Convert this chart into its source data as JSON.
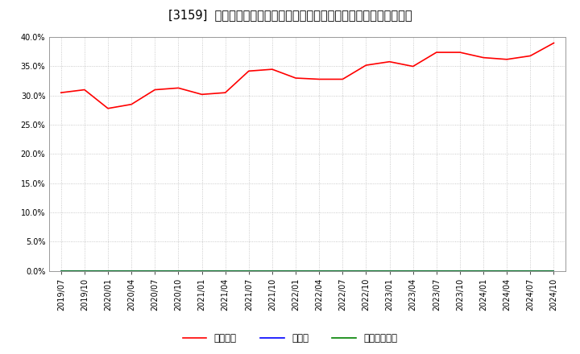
{
  "title": "[3159]  自己資本、のれん、繰延税金資産の総資産に対する比率の推移",
  "equity_dates": [
    "2019/07",
    "2019/10",
    "2020/01",
    "2020/04",
    "2020/07",
    "2020/10",
    "2021/01",
    "2021/04",
    "2021/07",
    "2021/10",
    "2022/01",
    "2022/04",
    "2022/07",
    "2022/10",
    "2023/01",
    "2023/04",
    "2023/07",
    "2023/10",
    "2024/01",
    "2024/04",
    "2024/07",
    "2024/10"
  ],
  "equity_values": [
    0.305,
    0.31,
    0.278,
    0.285,
    0.31,
    0.313,
    0.302,
    0.305,
    0.342,
    0.345,
    0.33,
    0.328,
    0.328,
    0.352,
    0.358,
    0.35,
    0.374,
    0.374,
    0.365,
    0.362,
    0.368,
    0.39
  ],
  "goodwill_values": [
    0.0,
    0.0,
    0.0,
    0.0,
    0.0,
    0.0,
    0.0,
    0.0,
    0.0,
    0.0,
    0.0,
    0.0,
    0.0,
    0.0,
    0.0,
    0.0,
    0.0,
    0.0,
    0.0,
    0.0,
    0.0,
    0.0
  ],
  "deferred_tax_values": [
    0.0,
    0.0,
    0.0,
    0.0,
    0.0,
    0.0,
    0.0,
    0.0,
    0.0,
    0.0,
    0.0,
    0.0,
    0.0,
    0.0,
    0.0,
    0.0,
    0.0,
    0.0,
    0.0,
    0.0,
    0.0,
    0.0
  ],
  "equity_color": "#ff0000",
  "goodwill_color": "#0000ff",
  "deferred_tax_color": "#008000",
  "background_color": "#ffffff",
  "plot_bg_color": "#ffffff",
  "grid_color": "#aaaaaa",
  "ylim": [
    0.0,
    0.4
  ],
  "yticks": [
    0.0,
    0.05,
    0.1,
    0.15,
    0.2,
    0.25,
    0.3,
    0.35,
    0.4
  ],
  "legend_labels": [
    "自己資本",
    "のれん",
    "繰延税金資産"
  ],
  "title_fontsize": 10.5,
  "tick_fontsize": 7,
  "legend_fontsize": 8.5
}
